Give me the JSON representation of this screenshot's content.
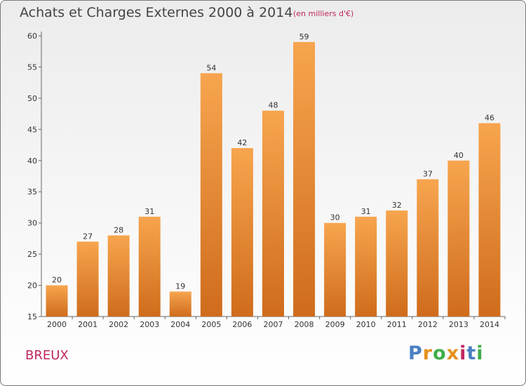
{
  "chart_data": {
    "type": "bar",
    "title": "Achats et Charges Externes 2000 à 2014",
    "subtitle": "(en milliers d'€)",
    "categories": [
      "2000",
      "2001",
      "2002",
      "2003",
      "2004",
      "2005",
      "2006",
      "2007",
      "2008",
      "2009",
      "2010",
      "2011",
      "2012",
      "2013",
      "2014"
    ],
    "values": [
      20,
      27,
      28,
      31,
      19,
      54,
      42,
      48,
      59,
      30,
      31,
      32,
      37,
      40,
      46
    ],
    "ylim": [
      15,
      60
    ],
    "yticks": [
      15,
      20,
      25,
      30,
      35,
      40,
      45,
      50,
      55,
      60
    ],
    "grid": false,
    "bar_color": "#f0973f",
    "bar_color_dark": "#cf6c1c"
  },
  "footer": {
    "commune": "BREUX",
    "logo": "Proxiti",
    "logo_colors": [
      "#4a7fc2",
      "#e6901e",
      "#3fae49",
      "#e6901e",
      "#c0265f",
      "#4a7fc2",
      "#3fae49"
    ]
  }
}
